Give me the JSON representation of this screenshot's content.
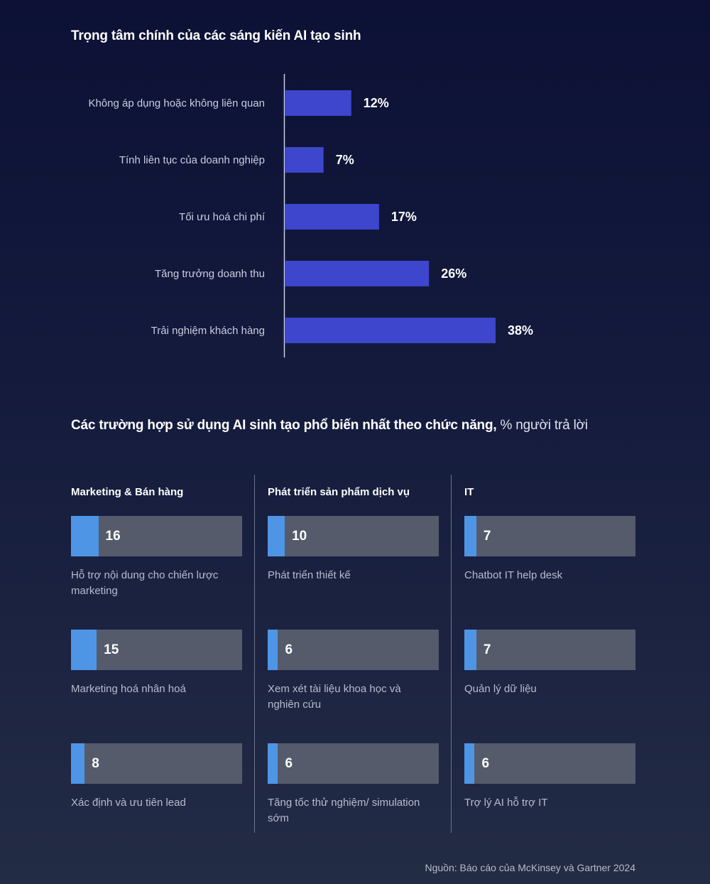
{
  "chart_data": [
    {
      "type": "bar",
      "orientation": "horizontal",
      "title": "Trọng tâm chính của các sáng kiến AI tạo sinh",
      "categories": [
        "Không áp dụng hoặc không liên quan",
        "Tính liên tục của doanh nghiệp",
        "Tối ưu hoá chi phí",
        "Tăng trưởng doanh thu",
        "Trải nghiệm khách hàng"
      ],
      "values": [
        12,
        7,
        17,
        26,
        38
      ],
      "value_labels": [
        "12%",
        "7%",
        "17%",
        "26%",
        "38%"
      ],
      "unit": "%",
      "xlim": [
        0,
        38
      ],
      "bar_color": "#3d46cc"
    },
    {
      "type": "bar",
      "title_bold": "Các trường hợp sử dụng AI sinh tạo phổ biến nhất theo chức năng,",
      "title_light": " % người trả lời",
      "scale_max": 100,
      "fill_color": "#4f95e6",
      "track_color": "#555b6b",
      "groups": [
        {
          "name": "Marketing & Bán hàng",
          "items": [
            {
              "label": "Hỗ trợ nội dung cho chiến lược marketing",
              "value": 16
            },
            {
              "label": "Marketing hoá nhân hoá",
              "value": 15
            },
            {
              "label": "Xác định và ưu tiên lead",
              "value": 8
            }
          ]
        },
        {
          "name": "Phát triển sản phẩm dịch vụ",
          "items": [
            {
              "label": "Phát triển thiết kế",
              "value": 10
            },
            {
              "label": "Xem xét tài liệu khoa học và nghiên cứu",
              "value": 6
            },
            {
              "label": "Tăng tốc thử nghiệm/ simulation sớm",
              "value": 6
            }
          ]
        },
        {
          "name": "IT",
          "items": [
            {
              "label": "Chatbot IT help desk",
              "value": 7
            },
            {
              "label": "Quản lý dữ liệu",
              "value": 7
            },
            {
              "label": "Trợ lý AI hỗ trợ IT",
              "value": 6
            }
          ]
        }
      ]
    }
  ],
  "source": "Nguồn: Báo cáo của McKinsey và Gartner 2024"
}
